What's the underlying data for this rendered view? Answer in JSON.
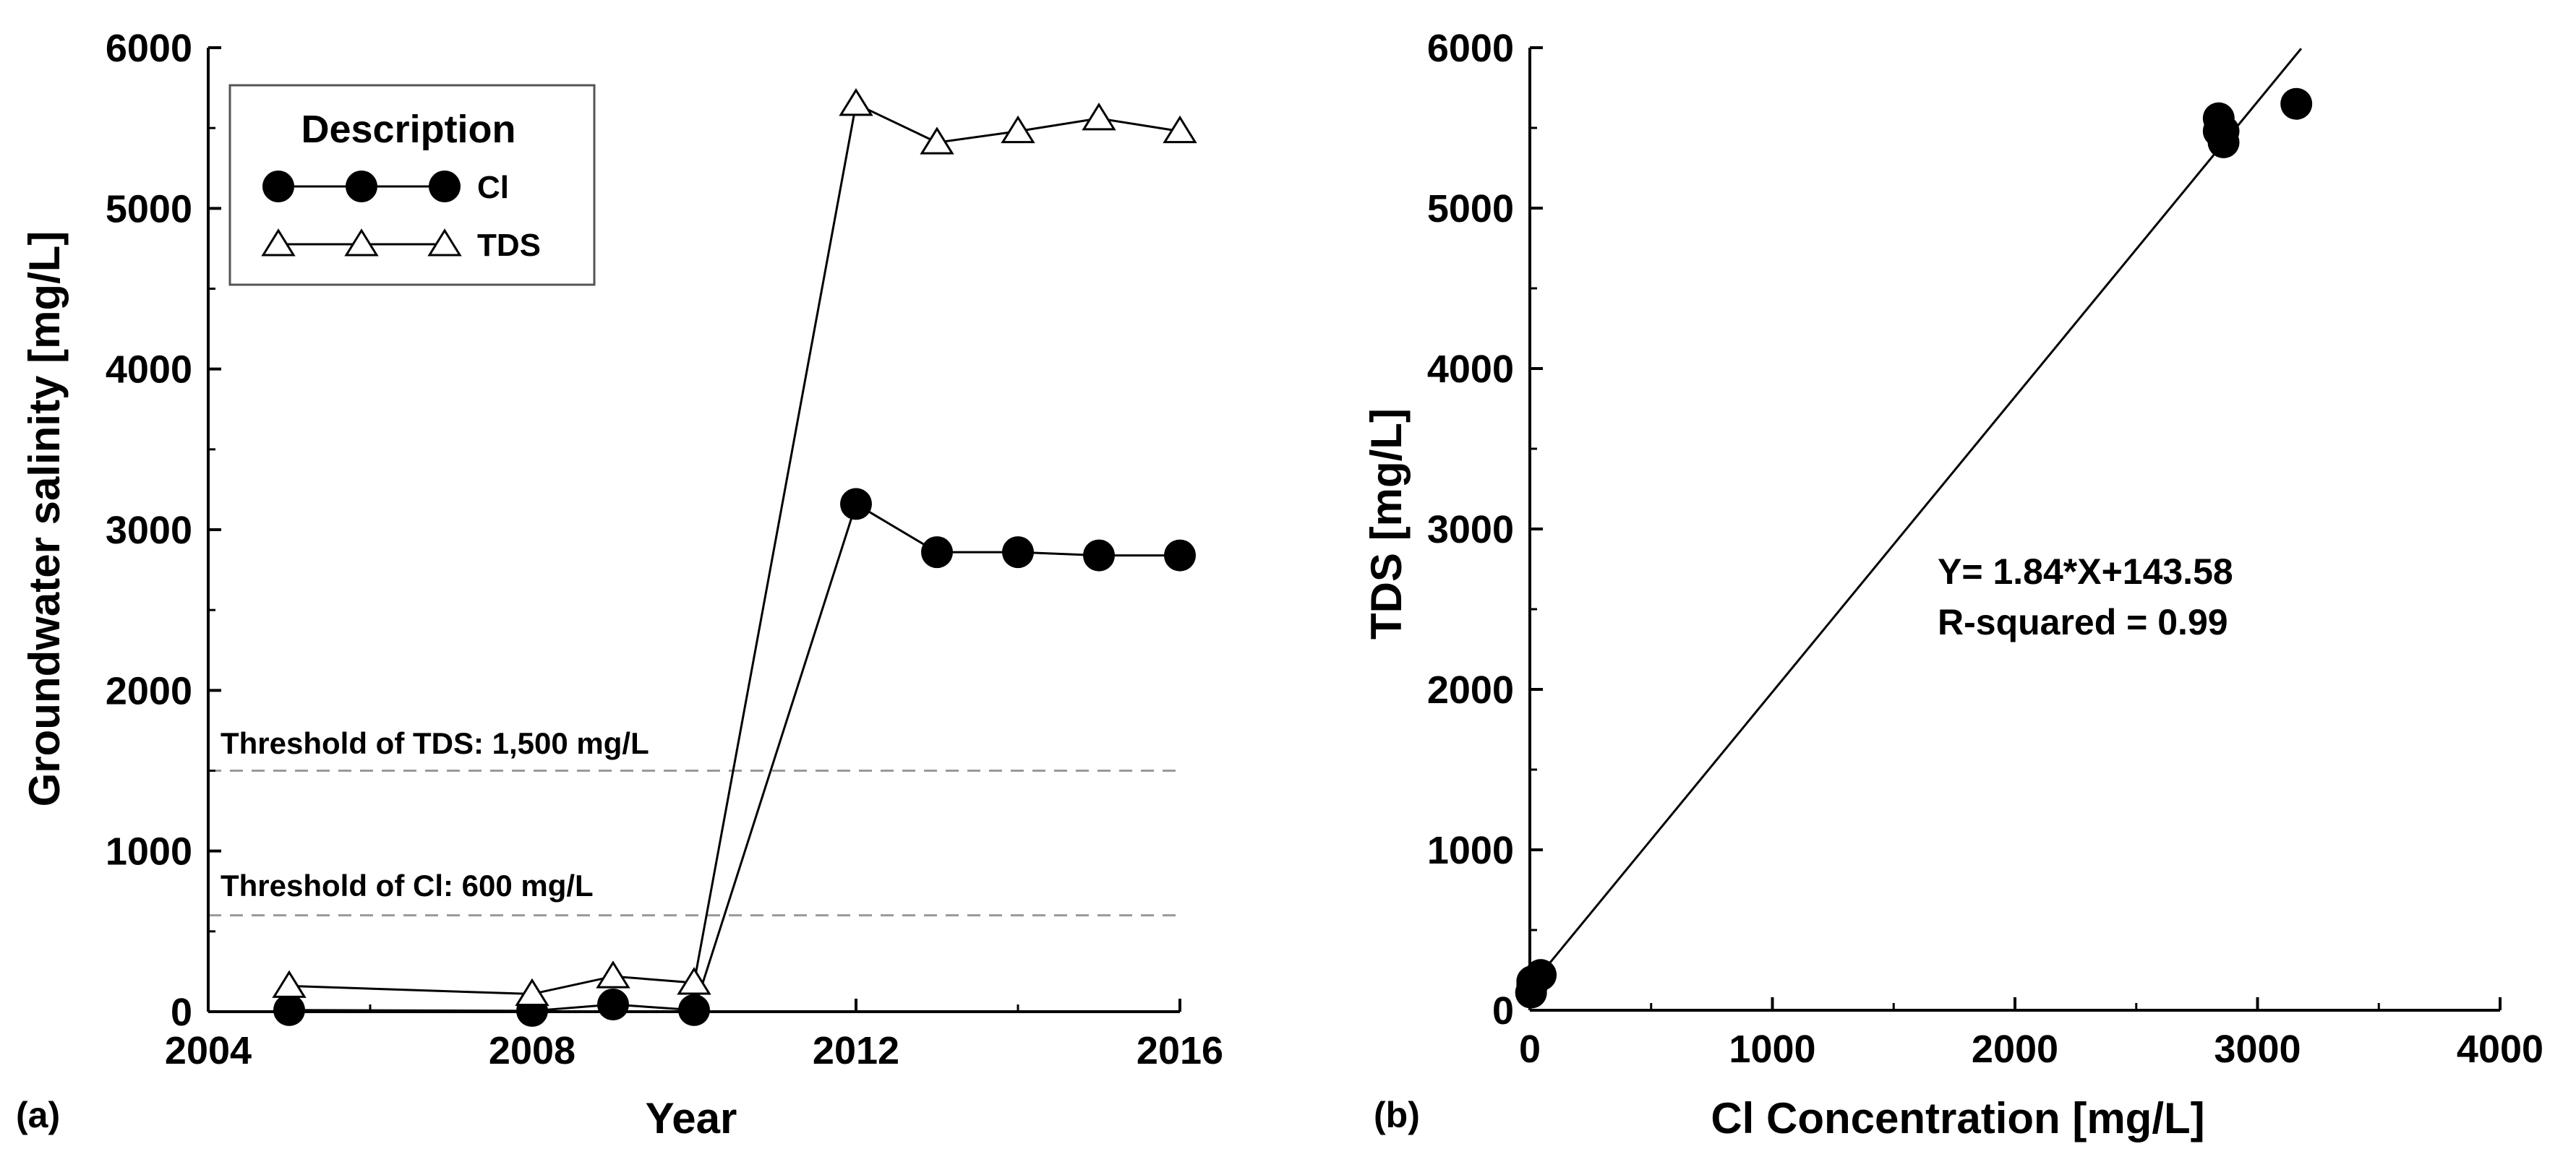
{
  "chart_data": [
    {
      "type": "line",
      "panel_label": "(a)",
      "xlabel": "Year",
      "ylabel": "Groundwater salinity [mg/L]",
      "xlim": [
        2004,
        2016
      ],
      "ylim": [
        0,
        6000
      ],
      "x_ticks": [
        2004,
        2008,
        2012,
        2016
      ],
      "y_ticks": [
        0,
        1000,
        2000,
        3000,
        4000,
        5000,
        6000
      ],
      "x_tick_labels": [
        "2004",
        "2008",
        "2012",
        "2016"
      ],
      "y_tick_labels": [
        "0",
        "1000",
        "2000",
        "3000",
        "4000",
        "5000",
        "6000"
      ],
      "grid": false,
      "legend": {
        "title": "Description",
        "placement": "top-left",
        "entries": [
          "Cl",
          "TDS"
        ]
      },
      "series": [
        {
          "name": "Cl",
          "marker": "filled-circle",
          "color": "#000000",
          "x": [
            2005,
            2008,
            2009,
            2010,
            2012,
            2013,
            2014,
            2015,
            2016
          ],
          "y": [
            10,
            5,
            45,
            10,
            3160,
            2860,
            2860,
            2840,
            2840
          ]
        },
        {
          "name": "TDS",
          "marker": "open-triangle",
          "color": "#000000",
          "x": [
            2005,
            2008,
            2009,
            2010,
            2012,
            2013,
            2014,
            2015,
            2016
          ],
          "y": [
            160,
            110,
            220,
            180,
            5650,
            5410,
            5480,
            5560,
            5480
          ]
        }
      ],
      "reference_lines": [
        {
          "y": 1500,
          "label": "Threshold of TDS: 1,500 mg/L",
          "style": "dashed",
          "color": "#999999"
        },
        {
          "y": 600,
          "label": "Threshold of Cl: 600 mg/L",
          "style": "dashed",
          "color": "#999999"
        }
      ]
    },
    {
      "type": "scatter",
      "panel_label": "(b)",
      "xlabel": "Cl Concentration [mg/L]",
      "ylabel": "TDS [mg/L]",
      "xlim": [
        0,
        4000
      ],
      "ylim": [
        0,
        6000
      ],
      "x_ticks": [
        0,
        1000,
        2000,
        3000,
        4000
      ],
      "y_ticks": [
        0,
        1000,
        2000,
        3000,
        4000,
        5000,
        6000
      ],
      "x_tick_labels": [
        "0",
        "1000",
        "2000",
        "3000",
        "4000"
      ],
      "y_tick_labels": [
        "0",
        "1000",
        "2000",
        "3000",
        "4000",
        "5000",
        "6000"
      ],
      "grid": false,
      "series": [
        {
          "marker": "filled-circle",
          "color": "#000000",
          "x": [
            10,
            5,
            45,
            10,
            3160,
            2860,
            2860,
            2840,
            2840
          ],
          "y": [
            160,
            110,
            220,
            180,
            5650,
            5410,
            5480,
            5560,
            5480
          ]
        }
      ],
      "fit_line": {
        "slope": 1.84,
        "intercept": 143.58,
        "x_range": [
          0,
          3180
        ]
      },
      "annotations": [
        "Y= 1.84*X+143.58",
        "R-squared = 0.99"
      ]
    }
  ]
}
